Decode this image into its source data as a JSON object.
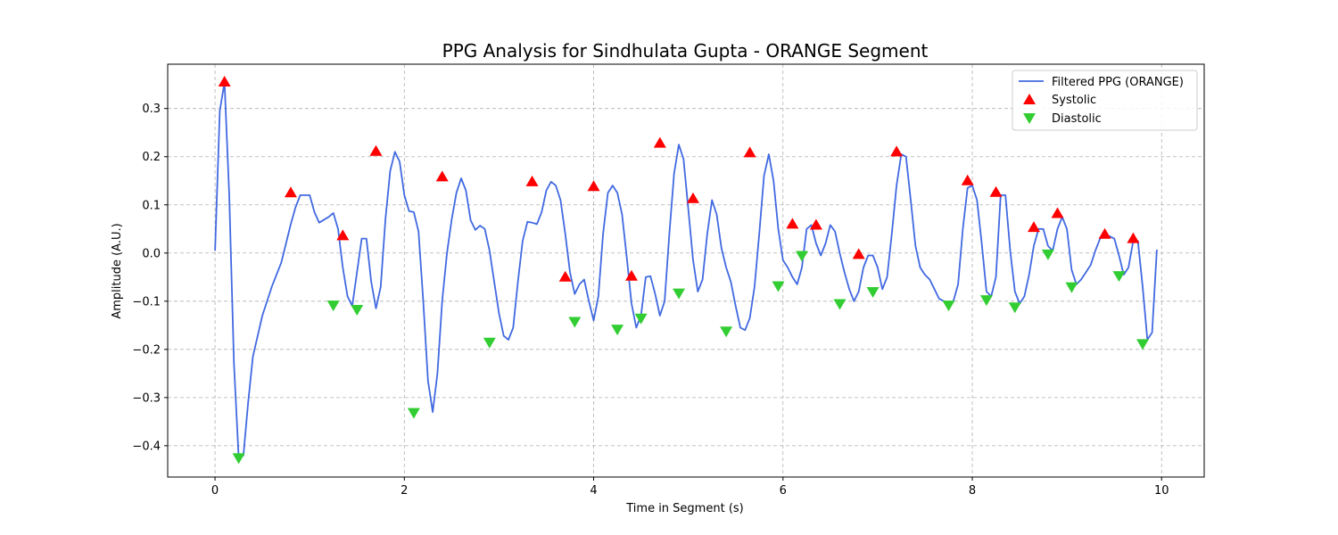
{
  "chart_data": {
    "type": "line",
    "title": "PPG Analysis for Sindhulata Gupta - ORANGE Segment",
    "xlabel": "Time in Segment (s)",
    "ylabel": "Amplitude (A.U.)",
    "xlim": [
      -0.5,
      10.45
    ],
    "ylim": [
      -0.465,
      0.392
    ],
    "xticks": [
      0,
      2,
      4,
      6,
      8,
      10
    ],
    "yticks": [
      -0.4,
      -0.3,
      -0.2,
      -0.1,
      0.0,
      0.1,
      0.2,
      0.3
    ],
    "xtick_labels": [
      "0",
      "2",
      "4",
      "6",
      "8",
      "10"
    ],
    "ytick_labels": [
      "−0.4",
      "−0.3",
      "−0.2",
      "−0.1",
      "0.0",
      "0.1",
      "0.2",
      "0.3"
    ],
    "grid": true,
    "legend_position": "top-right",
    "colors": {
      "line": "#4169e1",
      "systolic": "#ff0000",
      "diastolic": "#32cd32"
    },
    "series": [
      {
        "name": "Filtered PPG (ORANGE)",
        "type": "line",
        "points": [
          [
            0.0,
            0.005
          ],
          [
            0.05,
            0.295
          ],
          [
            0.1,
            0.355
          ],
          [
            0.15,
            0.12
          ],
          [
            0.2,
            -0.23
          ],
          [
            0.25,
            -0.425
          ],
          [
            0.3,
            -0.42
          ],
          [
            0.35,
            -0.31
          ],
          [
            0.4,
            -0.215
          ],
          [
            0.5,
            -0.13
          ],
          [
            0.6,
            -0.07
          ],
          [
            0.7,
            -0.02
          ],
          [
            0.8,
            0.06
          ],
          [
            0.85,
            0.095
          ],
          [
            0.9,
            0.12
          ],
          [
            1.0,
            0.12
          ],
          [
            1.05,
            0.085
          ],
          [
            1.1,
            0.063
          ],
          [
            1.2,
            0.075
          ],
          [
            1.25,
            0.083
          ],
          [
            1.3,
            0.05
          ],
          [
            1.35,
            -0.03
          ],
          [
            1.4,
            -0.09
          ],
          [
            1.45,
            -0.11
          ],
          [
            1.5,
            -0.04
          ],
          [
            1.55,
            0.03
          ],
          [
            1.6,
            0.03
          ],
          [
            1.65,
            -0.06
          ],
          [
            1.7,
            -0.115
          ],
          [
            1.75,
            -0.07
          ],
          [
            1.8,
            0.07
          ],
          [
            1.85,
            0.17
          ],
          [
            1.9,
            0.21
          ],
          [
            1.95,
            0.19
          ],
          [
            2.0,
            0.12
          ],
          [
            2.05,
            0.087
          ],
          [
            2.1,
            0.085
          ],
          [
            2.15,
            0.045
          ],
          [
            2.2,
            -0.1
          ],
          [
            2.25,
            -0.265
          ],
          [
            2.3,
            -0.33
          ],
          [
            2.35,
            -0.25
          ],
          [
            2.4,
            -0.1
          ],
          [
            2.45,
            0.0
          ],
          [
            2.5,
            0.07
          ],
          [
            2.55,
            0.125
          ],
          [
            2.6,
            0.155
          ],
          [
            2.65,
            0.13
          ],
          [
            2.7,
            0.068
          ],
          [
            2.75,
            0.048
          ],
          [
            2.8,
            0.057
          ],
          [
            2.85,
            0.05
          ],
          [
            2.9,
            0.005
          ],
          [
            2.95,
            -0.06
          ],
          [
            3.0,
            -0.125
          ],
          [
            3.05,
            -0.172
          ],
          [
            3.1,
            -0.18
          ],
          [
            3.15,
            -0.155
          ],
          [
            3.2,
            -0.06
          ],
          [
            3.25,
            0.025
          ],
          [
            3.3,
            0.065
          ],
          [
            3.35,
            0.063
          ],
          [
            3.4,
            0.06
          ],
          [
            3.45,
            0.085
          ],
          [
            3.5,
            0.13
          ],
          [
            3.55,
            0.148
          ],
          [
            3.6,
            0.14
          ],
          [
            3.65,
            0.11
          ],
          [
            3.7,
            0.04
          ],
          [
            3.75,
            -0.04
          ],
          [
            3.8,
            -0.085
          ],
          [
            3.85,
            -0.065
          ],
          [
            3.9,
            -0.055
          ],
          [
            3.95,
            -0.1
          ],
          [
            4.0,
            -0.14
          ],
          [
            4.05,
            -0.09
          ],
          [
            4.1,
            0.04
          ],
          [
            4.15,
            0.125
          ],
          [
            4.2,
            0.14
          ],
          [
            4.25,
            0.125
          ],
          [
            4.3,
            0.08
          ],
          [
            4.35,
            -0.01
          ],
          [
            4.4,
            -0.105
          ],
          [
            4.45,
            -0.155
          ],
          [
            4.5,
            -0.13
          ],
          [
            4.55,
            -0.05
          ],
          [
            4.6,
            -0.048
          ],
          [
            4.65,
            -0.085
          ],
          [
            4.7,
            -0.13
          ],
          [
            4.75,
            -0.1
          ],
          [
            4.8,
            0.04
          ],
          [
            4.85,
            0.165
          ],
          [
            4.9,
            0.225
          ],
          [
            4.95,
            0.195
          ],
          [
            5.0,
            0.09
          ],
          [
            5.05,
            -0.015
          ],
          [
            5.1,
            -0.08
          ],
          [
            5.15,
            -0.055
          ],
          [
            5.2,
            0.04
          ],
          [
            5.25,
            0.11
          ],
          [
            5.3,
            0.08
          ],
          [
            5.35,
            0.01
          ],
          [
            5.4,
            -0.03
          ],
          [
            5.45,
            -0.06
          ],
          [
            5.5,
            -0.11
          ],
          [
            5.55,
            -0.155
          ],
          [
            5.6,
            -0.16
          ],
          [
            5.65,
            -0.135
          ],
          [
            5.7,
            -0.07
          ],
          [
            5.75,
            0.04
          ],
          [
            5.8,
            0.16
          ],
          [
            5.85,
            0.205
          ],
          [
            5.9,
            0.15
          ],
          [
            5.95,
            0.05
          ],
          [
            6.0,
            -0.015
          ],
          [
            6.05,
            -0.03
          ],
          [
            6.1,
            -0.05
          ],
          [
            6.15,
            -0.065
          ],
          [
            6.2,
            -0.03
          ],
          [
            6.25,
            0.05
          ],
          [
            6.3,
            0.058
          ],
          [
            6.35,
            0.02
          ],
          [
            6.4,
            -0.005
          ],
          [
            6.45,
            0.02
          ],
          [
            6.5,
            0.058
          ],
          [
            6.55,
            0.045
          ],
          [
            6.6,
            0.0
          ],
          [
            6.65,
            -0.04
          ],
          [
            6.7,
            -0.075
          ],
          [
            6.75,
            -0.1
          ],
          [
            6.8,
            -0.08
          ],
          [
            6.85,
            -0.03
          ],
          [
            6.9,
            -0.005
          ],
          [
            6.95,
            -0.005
          ],
          [
            7.0,
            -0.03
          ],
          [
            7.05,
            -0.075
          ],
          [
            7.1,
            -0.05
          ],
          [
            7.15,
            0.04
          ],
          [
            7.2,
            0.14
          ],
          [
            7.25,
            0.205
          ],
          [
            7.3,
            0.2
          ],
          [
            7.35,
            0.11
          ],
          [
            7.4,
            0.015
          ],
          [
            7.45,
            -0.03
          ],
          [
            7.5,
            -0.045
          ],
          [
            7.55,
            -0.055
          ],
          [
            7.6,
            -0.075
          ],
          [
            7.65,
            -0.095
          ],
          [
            7.7,
            -0.1
          ],
          [
            7.75,
            -0.105
          ],
          [
            7.8,
            -0.1
          ],
          [
            7.85,
            -0.065
          ],
          [
            7.9,
            0.05
          ],
          [
            7.95,
            0.135
          ],
          [
            8.0,
            0.14
          ],
          [
            8.05,
            0.11
          ],
          [
            8.1,
            0.02
          ],
          [
            8.15,
            -0.08
          ],
          [
            8.2,
            -0.09
          ],
          [
            8.25,
            -0.05
          ],
          [
            8.3,
            0.12
          ],
          [
            8.35,
            0.12
          ],
          [
            8.4,
            0.005
          ],
          [
            8.45,
            -0.08
          ],
          [
            8.5,
            -0.105
          ],
          [
            8.55,
            -0.09
          ],
          [
            8.6,
            -0.045
          ],
          [
            8.65,
            0.015
          ],
          [
            8.7,
            0.05
          ],
          [
            8.75,
            0.05
          ],
          [
            8.8,
            0.015
          ],
          [
            8.85,
            0.005
          ],
          [
            8.9,
            0.05
          ],
          [
            8.95,
            0.075
          ],
          [
            9.0,
            0.05
          ],
          [
            9.05,
            -0.035
          ],
          [
            9.1,
            -0.065
          ],
          [
            9.15,
            -0.055
          ],
          [
            9.2,
            -0.04
          ],
          [
            9.25,
            -0.025
          ],
          [
            9.3,
            0.005
          ],
          [
            9.35,
            0.03
          ],
          [
            9.4,
            0.037
          ],
          [
            9.45,
            0.035
          ],
          [
            9.5,
            0.03
          ],
          [
            9.55,
            -0.005
          ],
          [
            9.6,
            -0.045
          ],
          [
            9.65,
            -0.03
          ],
          [
            9.7,
            0.025
          ],
          [
            9.75,
            0.025
          ],
          [
            9.8,
            -0.07
          ],
          [
            9.85,
            -0.18
          ],
          [
            9.9,
            -0.165
          ],
          [
            9.95,
            0.007
          ]
        ]
      },
      {
        "name": "Systolic",
        "type": "scatter",
        "marker": "triangle-up",
        "points": [
          [
            0.1,
            0.355
          ],
          [
            0.8,
            0.125
          ],
          [
            1.35,
            0.036
          ],
          [
            1.7,
            0.211
          ],
          [
            2.4,
            0.158
          ],
          [
            3.35,
            0.148
          ],
          [
            3.7,
            -0.05
          ],
          [
            4.0,
            0.138
          ],
          [
            4.4,
            -0.048
          ],
          [
            4.7,
            0.228
          ],
          [
            5.05,
            0.113
          ],
          [
            5.65,
            0.208
          ],
          [
            6.1,
            0.06
          ],
          [
            6.35,
            0.058
          ],
          [
            6.8,
            -0.003
          ],
          [
            7.2,
            0.21
          ],
          [
            7.95,
            0.15
          ],
          [
            8.25,
            0.126
          ],
          [
            8.65,
            0.053
          ],
          [
            8.9,
            0.082
          ],
          [
            9.4,
            0.039
          ],
          [
            9.7,
            0.03
          ]
        ]
      },
      {
        "name": "Diastolic",
        "type": "scatter",
        "marker": "triangle-down",
        "points": [
          [
            0.25,
            -0.425
          ],
          [
            1.25,
            -0.108
          ],
          [
            1.5,
            -0.117
          ],
          [
            2.1,
            -0.331
          ],
          [
            2.9,
            -0.185
          ],
          [
            3.8,
            -0.142
          ],
          [
            4.25,
            -0.158
          ],
          [
            4.5,
            -0.135
          ],
          [
            4.9,
            -0.083
          ],
          [
            5.4,
            -0.162
          ],
          [
            5.95,
            -0.068
          ],
          [
            6.2,
            -0.005
          ],
          [
            6.6,
            -0.105
          ],
          [
            6.95,
            -0.08
          ],
          [
            7.75,
            -0.108
          ],
          [
            8.15,
            -0.097
          ],
          [
            8.45,
            -0.112
          ],
          [
            8.8,
            -0.002
          ],
          [
            9.05,
            -0.07
          ],
          [
            9.55,
            -0.047
          ],
          [
            9.8,
            -0.188
          ]
        ]
      }
    ]
  }
}
